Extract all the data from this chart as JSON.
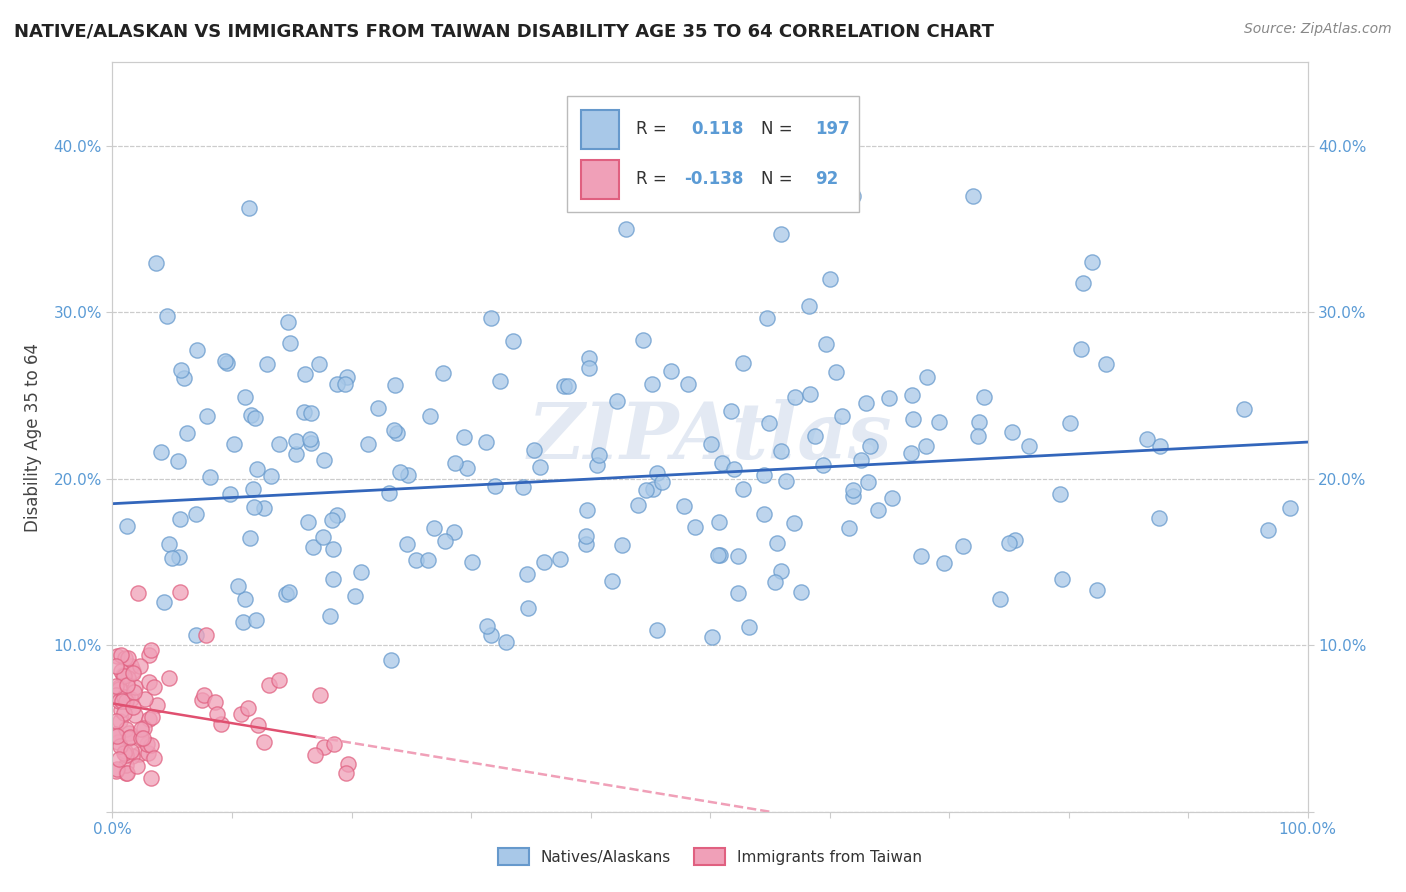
{
  "title": "NATIVE/ALASKAN VS IMMIGRANTS FROM TAIWAN DISABILITY AGE 35 TO 64 CORRELATION CHART",
  "source": "Source: ZipAtlas.com",
  "ylabel": "Disability Age 35 to 64",
  "xlim": [
    0.0,
    1.0
  ],
  "ylim": [
    0.0,
    0.45
  ],
  "xtick_positions": [
    0.0,
    0.1,
    0.2,
    0.3,
    0.4,
    0.5,
    0.6,
    0.7,
    0.8,
    0.9,
    1.0
  ],
  "xticklabels": [
    "0.0%",
    "",
    "",
    "",
    "",
    "",
    "",
    "",
    "",
    "",
    "100.0%"
  ],
  "ytick_positions": [
    0.0,
    0.1,
    0.2,
    0.3,
    0.4
  ],
  "yticklabels": [
    "",
    "10.0%",
    "20.0%",
    "30.0%",
    "40.0%"
  ],
  "watermark": "ZIPAtlas",
  "native_R": 0.118,
  "native_N": 197,
  "taiwan_R": -0.138,
  "taiwan_N": 92,
  "native_color": "#a8c8e8",
  "native_edge_color": "#6699cc",
  "taiwan_color": "#f0a0b8",
  "taiwan_edge_color": "#e06080",
  "trendline_native_color": "#3366bb",
  "trendline_taiwan_solid_color": "#e05070",
  "trendline_taiwan_dash_color": "#f0a0b8",
  "grid_color": "#cccccc",
  "background_color": "#ffffff",
  "tick_color": "#5b9bd5",
  "legend_box_color": "#dddddd",
  "native_trendline_y_start": 0.185,
  "native_trendline_y_end": 0.222,
  "taiwan_trendline_y_start": 0.065,
  "taiwan_trendline_x_solid_end": 0.17,
  "taiwan_trendline_x_dash_end": 0.55,
  "taiwan_trendline_y_end": 0.0
}
